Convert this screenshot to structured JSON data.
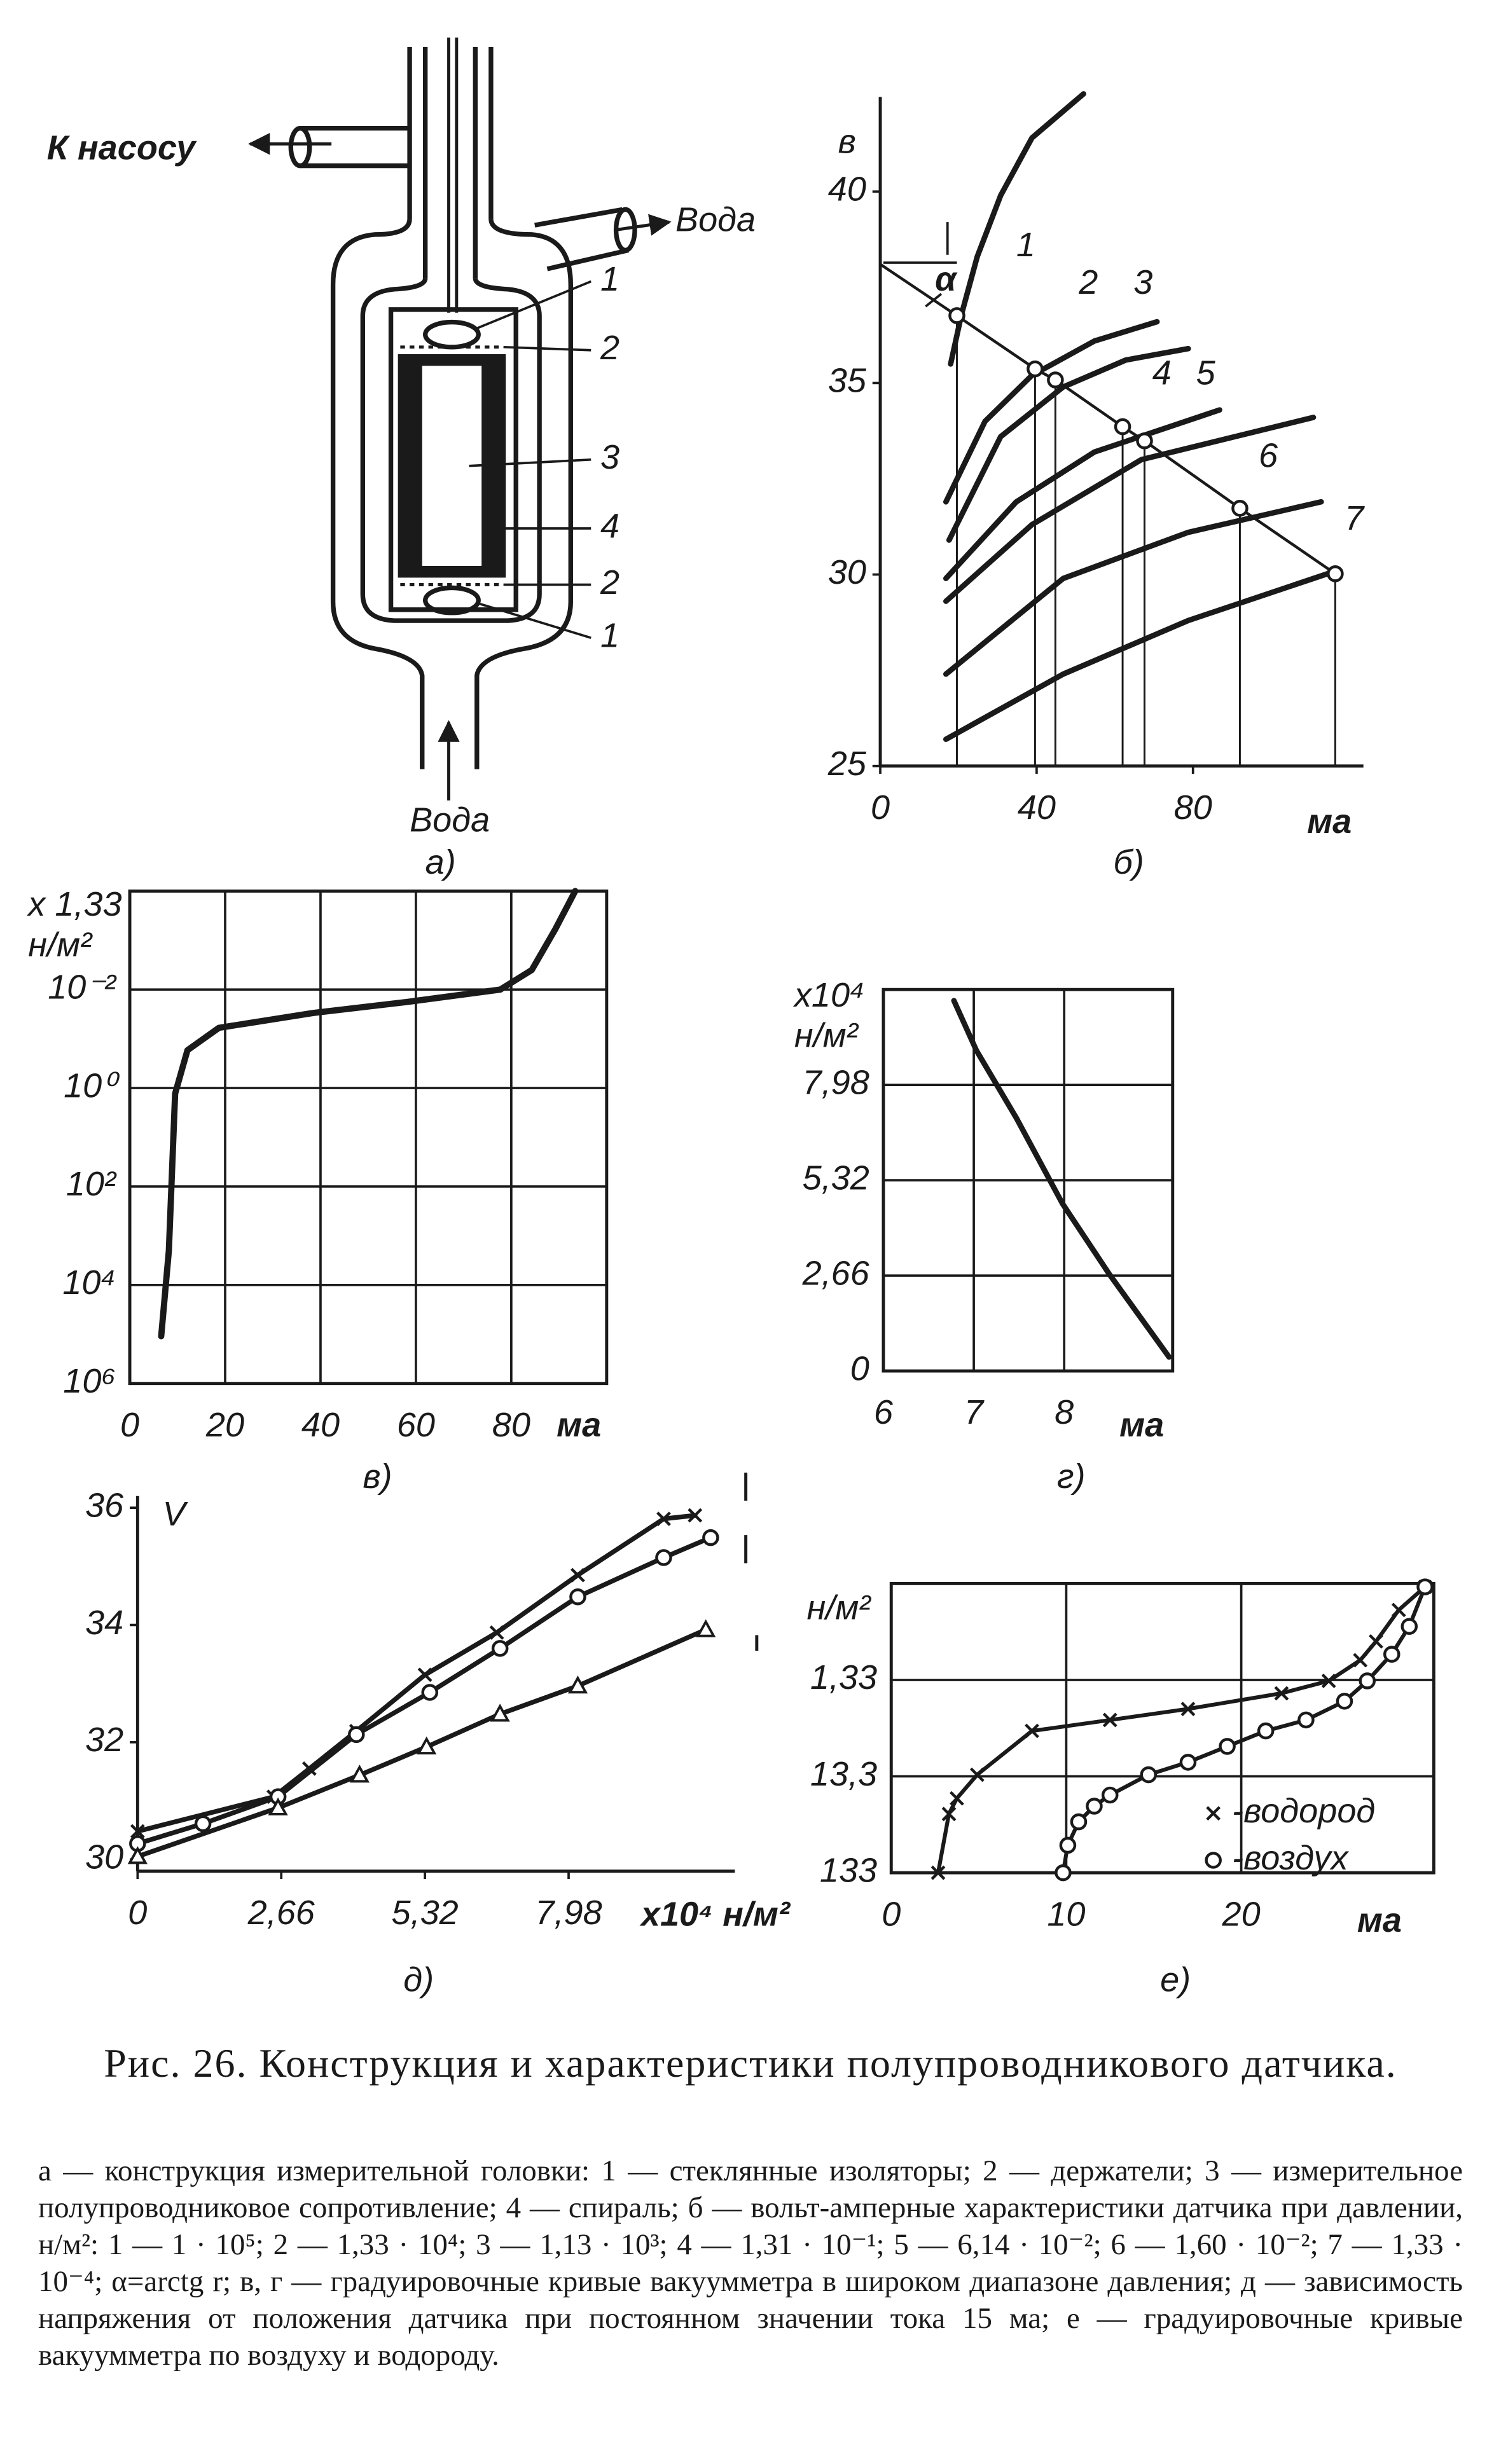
{
  "diagram": {
    "pump": "К насосу",
    "water_out": "Вода",
    "water_in": "Вода",
    "callouts": [
      "1",
      "2",
      "3",
      "4",
      "2",
      "1"
    ],
    "panel_label": "а)"
  },
  "chart_data": [
    {
      "type": "line",
      "panel_label": "б)",
      "y_label": [
        "в"
      ],
      "x_label": "ма",
      "annotation": "α",
      "xlim": [
        0,
        120
      ],
      "xticks": [
        0,
        40,
        80
      ],
      "ylim": [
        25,
        43
      ],
      "yticks": [
        25,
        30,
        35,
        40
      ],
      "grid": false,
      "series": [
        {
          "name": "1",
          "color": "#1a1a1a",
          "x": [
            18,
            20.8,
            24.8,
            30.8,
            38.8,
            52
          ],
          "values": [
            35.5,
            36.8,
            38.3,
            39.9,
            41.4,
            42.55
          ]
        },
        {
          "name": "2",
          "color": "#1a1a1a",
          "x": [
            16.8,
            26.8,
            38.8,
            54.8,
            70.8
          ],
          "values": [
            31.9,
            34.0,
            35.2,
            36.1,
            36.6
          ]
        },
        {
          "name": "3",
          "color": "#1a1a1a",
          "x": [
            17.6,
            30.8,
            46.8,
            62.8,
            78.8
          ],
          "values": [
            30.9,
            33.6,
            34.9,
            35.6,
            35.9
          ]
        },
        {
          "name": "4",
          "color": "#1a1a1a",
          "x": [
            16.8,
            34.8,
            54.8,
            86.8
          ],
          "values": [
            29.9,
            31.9,
            33.2,
            34.3
          ]
        },
        {
          "name": "5",
          "color": "#1a1a1a",
          "x": [
            16.8,
            38.8,
            66.8,
            110.8
          ],
          "values": [
            29.3,
            31.3,
            33.0,
            34.1
          ]
        },
        {
          "name": "6",
          "color": "#1a1a1a",
          "x": [
            16.8,
            46.8,
            78.8,
            112.8
          ],
          "values": [
            27.4,
            29.9,
            31.1,
            31.9
          ]
        },
        {
          "name": "7",
          "color": "#1a1a1a",
          "x": [
            16.8,
            46.8,
            78.8,
            116.8
          ],
          "values": [
            25.7,
            27.4,
            28.8,
            30.1
          ]
        }
      ],
      "load_line": {
        "color": "#1a1a1a",
        "x": [
          0,
          19.6,
          39.6,
          44.8,
          62,
          67.6,
          92,
          116.4
        ],
        "values": [
          38.1,
          36.76,
          35.37,
          35.08,
          33.86,
          33.49,
          31.73,
          30.02
        ]
      }
    },
    {
      "type": "line",
      "panel_label": "в)",
      "y_label": [
        "x 1,33",
        "н/м²"
      ],
      "x_label": "ма",
      "xlim": [
        0,
        100
      ],
      "xticks": [
        0,
        20,
        40,
        60,
        80
      ],
      "ylim": [
        0.0001,
        1000000
      ],
      "log_y": true,
      "y_inverted": true,
      "yticks": [
        {
          "value": 0.01,
          "label": "10⁻²"
        },
        {
          "value": 1,
          "label": "10⁰"
        },
        {
          "value": 100,
          "label": "10²"
        },
        {
          "value": 10000,
          "label": "10⁴"
        },
        {
          "value": 1000000,
          "label": "10⁶"
        }
      ],
      "grid": true,
      "series": [
        {
          "color": "#1a1a1a",
          "x": [
            6.6,
            8.2,
            9.5,
            12.1,
            18.7,
            38.4,
            58,
            77.7,
            84.3,
            89.2,
            93.4
          ],
          "values": [
            110000,
            2000,
            1.3,
            0.17,
            0.06,
            0.03,
            0.018,
            0.01,
            0.004,
            0.0006,
            0.0001
          ]
        }
      ]
    },
    {
      "type": "line",
      "panel_label": "г)",
      "y_label": [
        "x10⁴",
        "н/м²"
      ],
      "x_label": "ма",
      "xlim": [
        6,
        9.2
      ],
      "xticks": [
        6,
        7,
        8
      ],
      "ylim": [
        0,
        10.64
      ],
      "yticks": [
        0,
        {
          "value": 2.66,
          "label": "2,66"
        },
        {
          "value": 5.32,
          "label": "5,32"
        },
        {
          "value": 7.98,
          "label": "7,98"
        }
      ],
      "grid": true,
      "series": [
        {
          "color": "#1a1a1a",
          "x": [
            6.78,
            7.03,
            7.47,
            7.98,
            8.5,
            9.16
          ],
          "values": [
            10.33,
            8.94,
            7.06,
            4.67,
            2.7,
            0.39
          ]
        }
      ]
    },
    {
      "type": "line",
      "panel_label": "д)",
      "y_label": [
        "V"
      ],
      "x_label": "x10⁴ н/м²",
      "xlim": [
        0,
        11
      ],
      "xticks": [
        0,
        {
          "value": 2.66,
          "label": "2,66"
        },
        {
          "value": 5.32,
          "label": "5,32"
        },
        {
          "value": 7.98,
          "label": "7,98"
        }
      ],
      "ylim": [
        29.8,
        36.2
      ],
      "yticks": [
        30,
        32,
        34,
        36
      ],
      "grid": false,
      "series": [
        {
          "color": "#1a1a1a",
          "marker": "x",
          "x": [
            0,
            2.52,
            3.18,
            4.05,
            5.32,
            6.65,
            8.15,
            9.74,
            10.32
          ],
          "values": [
            30.48,
            31.07,
            31.55,
            32.19,
            33.15,
            33.87,
            34.85,
            35.81,
            35.87
          ]
        },
        {
          "color": "#1a1a1a",
          "marker": "o",
          "x": [
            0,
            1.21,
            2.6,
            4.05,
            5.41,
            6.71,
            8.15,
            9.74,
            10.61
          ],
          "values": [
            30.27,
            30.61,
            31.07,
            32.13,
            32.85,
            33.6,
            34.48,
            35.15,
            35.49
          ]
        },
        {
          "color": "#1a1a1a",
          "marker": "triangle",
          "x": [
            0,
            2.6,
            4.11,
            5.35,
            6.71,
            8.15,
            10.52
          ],
          "values": [
            30.05,
            30.88,
            31.44,
            31.92,
            32.48,
            32.96,
            33.92
          ]
        }
      ]
    },
    {
      "type": "line",
      "panel_label": "е)",
      "y_label": [
        "н/м²"
      ],
      "x_label": "ма",
      "xlim": [
        0,
        31
      ],
      "xticks": [
        0,
        10,
        20
      ],
      "ylim": [
        0.133,
        133
      ],
      "log_y": true,
      "y_inverted": true,
      "yticks": [
        {
          "value": 1.33,
          "label": "1,33"
        },
        {
          "value": 13.3,
          "label": "13,3"
        },
        133
      ],
      "grid": true,
      "legend": "lower right",
      "series": [
        {
          "name": "-водород",
          "color": "#1a1a1a",
          "marker": "x",
          "x": [
            2.68,
            3.3,
            3.75,
            4.91,
            8.04,
            12.5,
            16.96,
            22.3,
            25.0,
            26.8,
            27.7,
            29.0,
            30.5
          ],
          "values": [
            133,
            32.7,
            22.5,
            12.8,
            4.49,
            3.46,
            2.66,
            1.83,
            1.36,
            0.83,
            0.53,
            0.25,
            0.144
          ]
        },
        {
          "name": "-воздух",
          "color": "#1a1a1a",
          "marker": "o",
          "x": [
            9.82,
            10.09,
            10.71,
            11.6,
            12.5,
            14.7,
            16.96,
            19.2,
            21.4,
            23.7,
            25.9,
            27.2,
            28.6,
            29.6,
            30.5
          ],
          "values": [
            133,
            69,
            39.4,
            27.1,
            20.8,
            12.8,
            9.5,
            6.5,
            4.49,
            3.46,
            2.21,
            1.36,
            0.72,
            0.37,
            0.144
          ]
        }
      ]
    }
  ],
  "caption": {
    "title": "Рис. 26. Конструкция и характеристики полупроводникового датчика.",
    "text": "а — конструкция измерительной головки: 1 — стеклянные изоляторы; 2 — держатели; 3 — измерительное полупроводниковое сопротивление; 4 — спираль; б — вольт-амперные характеристики датчика при давлении, н/м²: 1 — 1 · 10⁵; 2 — 1,33 · 10⁴; 3 — 1,13 · 10³; 4 — 1,31 · 10⁻¹; 5 — 6,14 · 10⁻²; 6 — 1,60 · 10⁻²; 7 — 1,33 · 10⁻⁴; α=arctg r; в, г — градуировочные кривые вакуумметра в широком диапазоне давления; д — зависимость напряжения от положения датчика при постоянном значении тока 15 ма; е — градуировочные кривые вакуумметра по воздуху и водороду."
  }
}
